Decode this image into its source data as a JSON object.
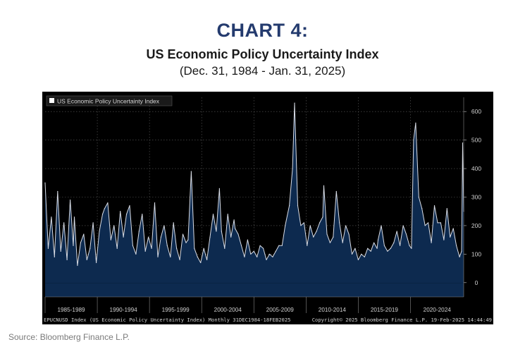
{
  "header": {
    "title": "CHART 4:",
    "subtitle": "US Economic Policy Uncertainty Index",
    "date_range": "(Dec. 31, 1984 - Jan. 31, 2025)"
  },
  "footer": {
    "bloomberg_line_left": "EPUCNUSD Index (US Economic Policy Uncertainty Index)  Monthly 31DEC1984-18FEB2025",
    "bloomberg_line_right": "Copyright© 2025 Bloomberg Finance L.P.    19-Feb-2025 14:44:49",
    "source": "Source: Bloomberg Finance L.P."
  },
  "colors": {
    "title": "#243b6e",
    "background": "#000000",
    "area_fill": "#0d2a4f",
    "line": "#d9dde6",
    "grid": "#5c5c5c",
    "axis_text": "#d0d0d0"
  },
  "chart_data": {
    "type": "area",
    "title": "",
    "xlabel": "",
    "ylabel": "",
    "legend": {
      "label": "US Economic Policy Uncertainty Index",
      "position": "top-left"
    },
    "grid": true,
    "ylim": [
      -50,
      650
    ],
    "yticks": [
      0,
      100,
      200,
      300,
      400,
      500,
      600
    ],
    "y_axis_side": "right",
    "x_range": [
      1985.0,
      2025.1
    ],
    "period_labels": [
      "1985-1989",
      "1990-1994",
      "1995-1999",
      "2000-2004",
      "2005-2009",
      "2010-2014",
      "2015-2019",
      "2020-2024"
    ],
    "period_starts": [
      1985,
      1990,
      1995,
      2000,
      2005,
      2010,
      2015,
      2020
    ],
    "series": [
      {
        "name": "US Economic Policy Uncertainty Index",
        "x": [
          1985.0,
          1985.3,
          1985.6,
          1985.9,
          1986.2,
          1986.5,
          1986.8,
          1987.1,
          1987.4,
          1987.7,
          1987.8,
          1988.1,
          1988.4,
          1988.7,
          1989.0,
          1989.3,
          1989.6,
          1989.9,
          1990.2,
          1990.5,
          1990.7,
          1991.0,
          1991.3,
          1991.6,
          1991.9,
          1992.2,
          1992.5,
          1992.8,
          1993.1,
          1993.4,
          1993.7,
          1994.0,
          1994.3,
          1994.6,
          1994.9,
          1995.2,
          1995.5,
          1995.8,
          1996.1,
          1996.4,
          1996.7,
          1997.0,
          1997.3,
          1997.6,
          1997.9,
          1998.2,
          1998.5,
          1998.7,
          1999.0,
          1999.3,
          1999.6,
          1999.9,
          2000.2,
          2000.5,
          2000.8,
          2001.1,
          2001.4,
          2001.7,
          2001.9,
          2002.2,
          2002.5,
          2002.8,
          2003.1,
          2003.2,
          2003.5,
          2003.8,
          2004.1,
          2004.4,
          2004.7,
          2005.0,
          2005.3,
          2005.6,
          2005.9,
          2006.2,
          2006.5,
          2006.8,
          2007.1,
          2007.4,
          2007.7,
          2008.0,
          2008.4,
          2008.7,
          2008.9,
          2009.2,
          2009.5,
          2009.8,
          2010.1,
          2010.4,
          2010.7,
          2011.0,
          2011.3,
          2011.6,
          2011.7,
          2012.0,
          2012.3,
          2012.6,
          2012.9,
          2013.2,
          2013.5,
          2013.8,
          2014.1,
          2014.4,
          2014.7,
          2015.0,
          2015.3,
          2015.6,
          2015.9,
          2016.2,
          2016.5,
          2016.8,
          2016.9,
          2017.2,
          2017.5,
          2017.8,
          2018.1,
          2018.4,
          2018.7,
          2019.0,
          2019.3,
          2019.6,
          2019.9,
          2020.1,
          2020.3,
          2020.5,
          2020.8,
          2021.1,
          2021.4,
          2021.7,
          2022.0,
          2022.3,
          2022.6,
          2022.9,
          2023.2,
          2023.5,
          2023.8,
          2024.1,
          2024.4,
          2024.7,
          2024.9,
          2025.0,
          2025.1
        ],
        "values": [
          350,
          120,
          230,
          90,
          320,
          110,
          210,
          80,
          290,
          130,
          230,
          60,
          140,
          170,
          80,
          120,
          210,
          70,
          180,
          240,
          260,
          280,
          150,
          200,
          120,
          250,
          160,
          240,
          270,
          130,
          100,
          180,
          240,
          110,
          160,
          120,
          280,
          90,
          160,
          200,
          130,
          90,
          210,
          120,
          80,
          170,
          140,
          150,
          390,
          120,
          90,
          70,
          120,
          80,
          160,
          240,
          180,
          330,
          180,
          120,
          240,
          160,
          220,
          190,
          170,
          130,
          90,
          150,
          100,
          110,
          90,
          130,
          120,
          80,
          100,
          90,
          110,
          130,
          130,
          200,
          270,
          400,
          630,
          270,
          200,
          210,
          130,
          200,
          160,
          180,
          210,
          230,
          340,
          170,
          140,
          160,
          320,
          210,
          140,
          200,
          170,
          100,
          120,
          80,
          100,
          90,
          120,
          110,
          140,
          120,
          150,
          200,
          130,
          110,
          120,
          140,
          180,
          130,
          200,
          170,
          130,
          120,
          500,
          560,
          300,
          260,
          200,
          210,
          140,
          270,
          210,
          210,
          150,
          260,
          160,
          190,
          130,
          90,
          110,
          490,
          250
        ]
      }
    ]
  }
}
